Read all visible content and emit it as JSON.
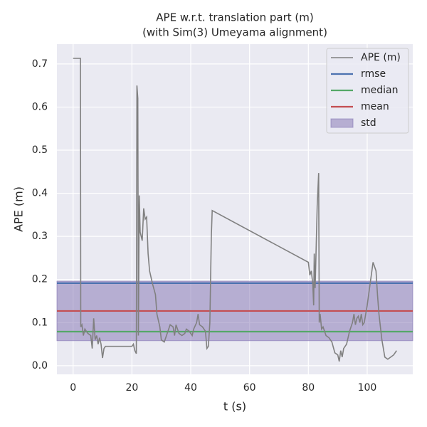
{
  "chart_data": {
    "type": "line",
    "title": "APE w.r.t. translation part (m)",
    "subtitle": "(with Sim(3) Umeyama alignment)",
    "x_label": "t (s)",
    "y_label": "APE (m)",
    "xlim": [
      -5.5,
      115.5
    ],
    "ylim": [
      -0.02,
      0.746
    ],
    "xticks": [
      0,
      20,
      40,
      60,
      80,
      100
    ],
    "yticks": [
      {
        "value": 0,
        "label": "0.0"
      },
      0.1,
      0.2,
      0.3,
      0.4,
      0.5,
      0.6,
      0.7
    ],
    "grid": true,
    "legend": "upper right",
    "x": [
      0,
      2.5,
      2.6,
      3,
      3.5,
      4,
      5,
      6,
      6.5,
      7,
      7.5,
      8,
      8.5,
      9,
      9.5,
      10,
      10.5,
      11,
      15,
      20,
      20.5,
      21,
      21.5,
      21.7,
      22,
      22.2,
      22.5,
      22.8,
      23.5,
      24,
      24.5,
      25,
      25.5,
      26,
      27,
      28,
      28.5,
      29.5,
      30,
      31,
      32,
      33,
      34,
      34.5,
      35,
      36,
      37,
      38,
      38.5,
      39.5,
      40.5,
      41,
      42,
      42.5,
      43,
      44,
      45,
      45.5,
      46,
      46.5,
      47,
      47.3,
      80,
      80.5,
      81,
      81.5,
      81.8,
      82,
      82.3,
      82.6,
      83,
      83.5,
      83.7,
      84,
      84.5,
      85,
      86,
      87,
      88,
      89,
      90,
      90.5,
      91,
      91.5,
      92,
      93,
      94,
      95,
      95.5,
      96,
      96.5,
      97,
      97.5,
      98,
      98.5,
      99,
      100,
      101,
      102,
      102.5,
      103,
      103.5,
      104,
      105,
      106,
      107,
      108,
      109,
      110
    ],
    "series": [
      {
        "name": "APE (m)",
        "color": "#808080",
        "values": [
          0.713,
          0.713,
          0.09,
          0.095,
          0.07,
          0.085,
          0.075,
          0.07,
          0.04,
          0.11,
          0.06,
          0.07,
          0.05,
          0.065,
          0.05,
          0.018,
          0.04,
          0.045,
          0.045,
          0.045,
          0.05,
          0.035,
          0.028,
          0.65,
          0.62,
          0.07,
          0.395,
          0.31,
          0.29,
          0.365,
          0.34,
          0.345,
          0.26,
          0.22,
          0.19,
          0.165,
          0.12,
          0.09,
          0.06,
          0.055,
          0.075,
          0.095,
          0.09,
          0.07,
          0.095,
          0.075,
          0.07,
          0.075,
          0.085,
          0.08,
          0.07,
          0.085,
          0.1,
          0.12,
          0.095,
          0.09,
          0.08,
          0.04,
          0.045,
          0.1,
          0.3,
          0.36,
          0.24,
          0.21,
          0.22,
          0.19,
          0.14,
          0.26,
          0.18,
          0.26,
          0.37,
          0.447,
          0.1,
          0.12,
          0.085,
          0.09,
          0.07,
          0.065,
          0.055,
          0.03,
          0.025,
          0.01,
          0.035,
          0.02,
          0.04,
          0.05,
          0.08,
          0.1,
          0.12,
          0.095,
          0.11,
          0.115,
          0.1,
          0.12,
          0.095,
          0.1,
          0.14,
          0.19,
          0.24,
          0.23,
          0.22,
          0.165,
          0.12,
          0.06,
          0.02,
          0.015,
          0.02,
          0.025,
          0.035
        ]
      }
    ],
    "reference_lines": [
      {
        "name": "rmse",
        "value": 0.1915,
        "color": "#4c72b0"
      },
      {
        "name": "median",
        "value": 0.079,
        "color": "#55a868"
      },
      {
        "name": "mean",
        "value": 0.127,
        "color": "#c44e52"
      }
    ],
    "std_band": {
      "name": "std",
      "value": 0.069,
      "color": "#8172b2"
    }
  }
}
